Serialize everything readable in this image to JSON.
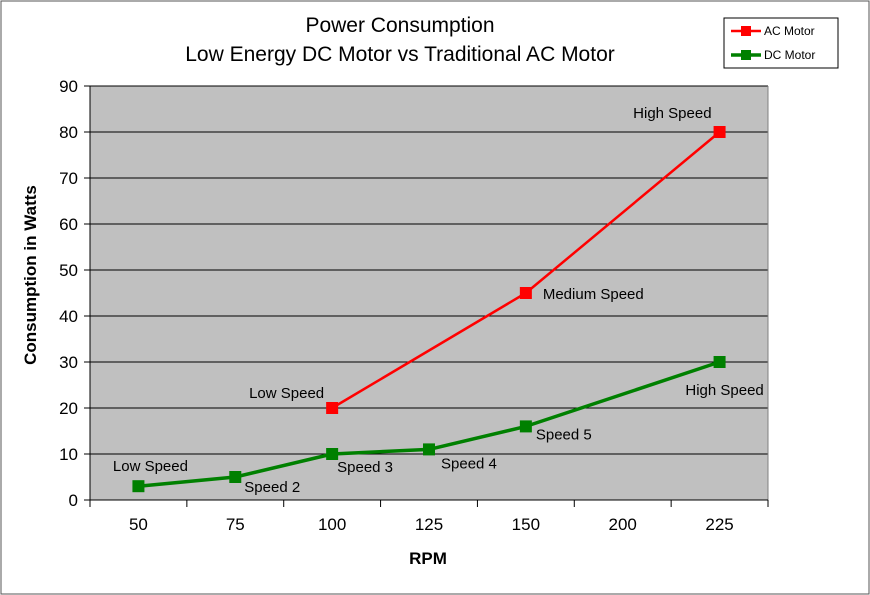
{
  "chart_data": {
    "type": "line",
    "title": "Power Consumption",
    "subtitle": "Low Energy DC Motor vs Traditional AC Motor",
    "xlabel": "RPM",
    "ylabel": "Consumption in Watts",
    "categories": [
      "50",
      "75",
      "100",
      "125",
      "150",
      "200",
      "225"
    ],
    "ylim": [
      0,
      90
    ],
    "yticks": [
      "0",
      "10",
      "20",
      "30",
      "40",
      "50",
      "60",
      "70",
      "80",
      "90"
    ],
    "grid": true,
    "legend_position": "top-right",
    "plot_background": "#c0c0c0",
    "series": [
      {
        "name": "AC Motor",
        "color": "#ff0000",
        "points": [
          {
            "x": "100",
            "y": 20,
            "label": "Low Speed"
          },
          {
            "x": "150",
            "y": 45,
            "label": "Medium Speed"
          },
          {
            "x": "225",
            "y": 80,
            "label": "High Speed"
          }
        ]
      },
      {
        "name": "DC Motor",
        "color": "#008000",
        "points": [
          {
            "x": "50",
            "y": 3,
            "label": "Low Speed"
          },
          {
            "x": "75",
            "y": 5,
            "label": "Speed 2"
          },
          {
            "x": "100",
            "y": 10,
            "label": "Speed 3"
          },
          {
            "x": "125",
            "y": 11,
            "label": "Speed 4"
          },
          {
            "x": "150",
            "y": 16,
            "label": "Speed 5"
          },
          {
            "x": "225",
            "y": 30,
            "label": "High Speed"
          }
        ]
      }
    ]
  }
}
